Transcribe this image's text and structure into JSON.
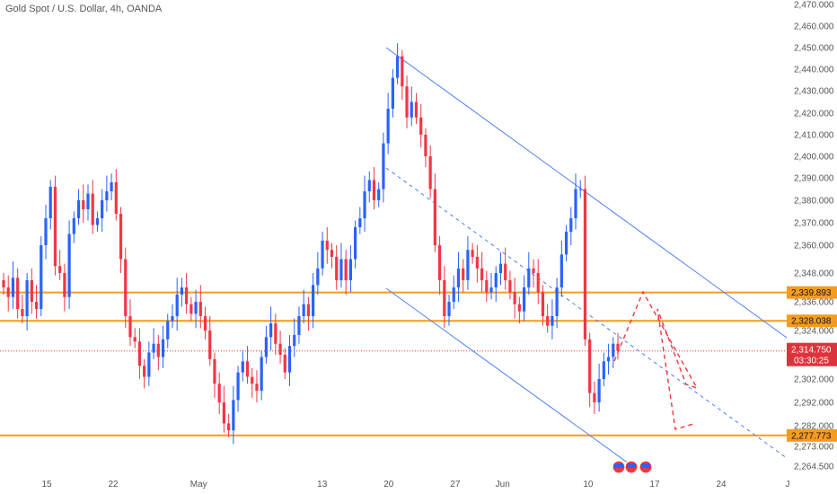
{
  "header": {
    "title": "Gold Spot / U.S. Dollar, 4h, OANDA"
  },
  "chart_data": {
    "type": "candlestick",
    "title": "Gold Spot / U.S. Dollar, 4h, OANDA",
    "y_scale": "linear",
    "y_ticks": [
      "2,470.000",
      "2,460.000",
      "2,450.000",
      "2,440.000",
      "2,430.000",
      "2,420.000",
      "2,410.000",
      "2,400.000",
      "2,390.000",
      "2,380.000",
      "2,370.000",
      "2,360.000",
      "2,348.000",
      "2,336.000",
      "2,324.000",
      "2,302.000",
      "2,292.000",
      "2,282.000",
      "2,273.000",
      "2,264.500"
    ],
    "y_tick_values": [
      2470,
      2460,
      2450,
      2440,
      2430,
      2420,
      2410,
      2400,
      2390,
      2380,
      2370,
      2360,
      2348,
      2336,
      2324,
      2302,
      2292,
      2282,
      2273,
      2264.5
    ],
    "x_ticks": [
      {
        "label": "15",
        "day": 15
      },
      {
        "label": "22",
        "day": 22
      },
      {
        "label": "May",
        "day": 31
      },
      {
        "label": "13",
        "day": 44
      },
      {
        "label": "20",
        "day": 51
      },
      {
        "label": "27",
        "day": 58
      },
      {
        "label": "Jun",
        "day": 63
      },
      {
        "label": "10",
        "day": 72
      },
      {
        "label": "17",
        "day": 79
      },
      {
        "label": "24",
        "day": 86
      },
      {
        "label": "J",
        "day": 93
      }
    ],
    "levels": [
      {
        "value": 2339.893,
        "label": "2,339.893",
        "color": "#f59b1e"
      },
      {
        "value": 2328.038,
        "label": "2,328.038",
        "color": "#f59b1e"
      },
      {
        "value": 2277.773,
        "label": "2,277.773",
        "color": "#f59b1e"
      }
    ],
    "last_price": {
      "value": 2314.75,
      "label": "2,314.750",
      "countdown": "03:30:25",
      "color": "#e0323c"
    },
    "colors": {
      "up": "#2962ff",
      "down": "#f23645",
      "channel": "#4a7ff0",
      "level": "#f59b1e",
      "projection": "#f23645"
    },
    "grid": false,
    "closes": [
      2342,
      2338,
      2346,
      2333,
      2330,
      2345,
      2336,
      2333,
      2360,
      2372,
      2386,
      2351,
      2348,
      2338,
      2365,
      2372,
      2380,
      2376,
      2383,
      2369,
      2372,
      2380,
      2384,
      2388,
      2374,
      2354,
      2330,
      2321,
      2319,
      2308,
      2303,
      2314,
      2318,
      2312,
      2320,
      2328,
      2330,
      2339,
      2342,
      2335,
      2331,
      2336,
      2330,
      2324,
      2311,
      2300,
      2292,
      2283,
      2280,
      2293,
      2305,
      2310,
      2303,
      2300,
      2297,
      2312,
      2321,
      2327,
      2318,
      2313,
      2305,
      2317,
      2322,
      2330,
      2335,
      2330,
      2343,
      2350,
      2362,
      2358,
      2355,
      2345,
      2354,
      2345,
      2354,
      2368,
      2372,
      2384,
      2389,
      2380,
      2385,
      2406,
      2422,
      2436,
      2446,
      2432,
      2418,
      2425,
      2418,
      2410,
      2400,
      2385,
      2360,
      2345,
      2330,
      2336,
      2342,
      2350,
      2345,
      2358,
      2355,
      2350,
      2345,
      2340,
      2342,
      2348,
      2352,
      2345,
      2340,
      2335,
      2332,
      2342,
      2350,
      2348,
      2340,
      2330,
      2326,
      2330,
      2342,
      2356,
      2366,
      2372,
      2385,
      2385,
      2320,
      2296,
      2292,
      2302,
      2310,
      2312,
      2318,
      2314.75
    ],
    "ohlc_note": ""
  }
}
